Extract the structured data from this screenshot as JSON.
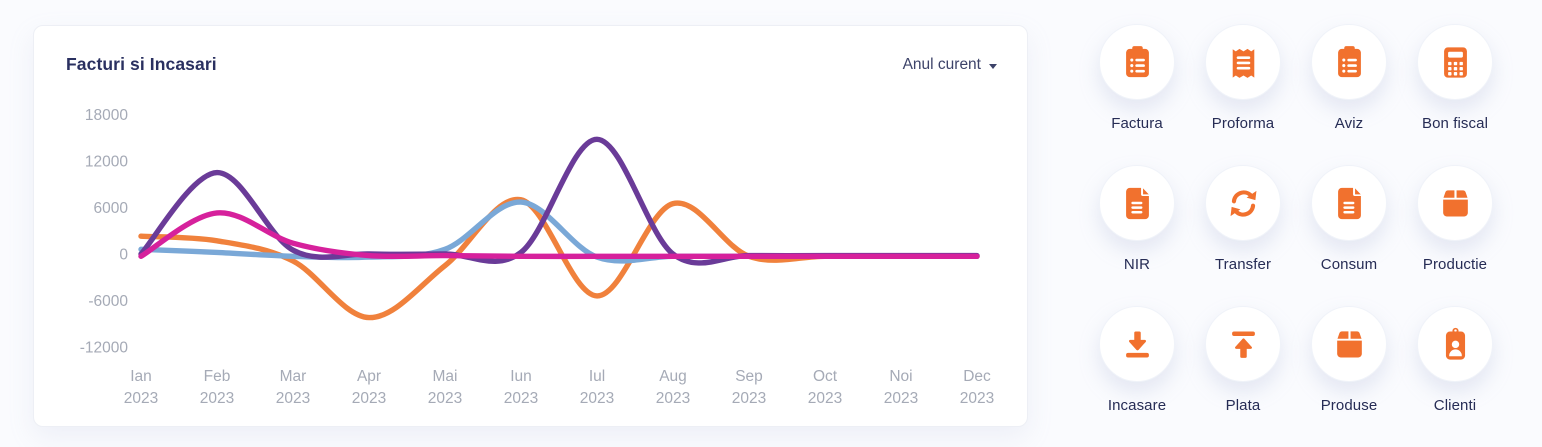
{
  "card": {
    "title": "Facturi si Incasari",
    "period_selector": "Anul curent"
  },
  "chart_data": {
    "type": "line",
    "title": "Facturi si Incasari",
    "categories": [
      "Ian",
      "Feb",
      "Mar",
      "Apr",
      "Mai",
      "Iun",
      "Iul",
      "Aug",
      "Sep",
      "Oct",
      "Noi",
      "Dec"
    ],
    "category_year": "2023",
    "y_ticks": [
      18000,
      12000,
      6000,
      0,
      -6000,
      -12000
    ],
    "ylim": [
      -14000,
      19000
    ],
    "grid": false,
    "legend": false,
    "series": [
      {
        "id": "orange-line",
        "color": "#f0813c",
        "values": [
          2300,
          1700,
          -900,
          -8200,
          -1500,
          7000,
          -5400,
          6500,
          -300,
          -300,
          -300,
          -300
        ]
      },
      {
        "id": "blue-line",
        "color": "#7aa8d7",
        "values": [
          600,
          200,
          -300,
          -400,
          600,
          6700,
          -400,
          -300,
          -300,
          -300,
          -300,
          -300
        ]
      },
      {
        "id": "purple-line",
        "color": "#6a3b98",
        "values": [
          0,
          10500,
          500,
          0,
          0,
          200,
          14800,
          0,
          -200,
          -200,
          -200,
          -200
        ]
      },
      {
        "id": "pink-line",
        "color": "#d6219c",
        "values": [
          -300,
          5300,
          1400,
          -200,
          -200,
          -300,
          -300,
          -300,
          -300,
          -300,
          -300,
          -300
        ]
      }
    ]
  },
  "shortcuts": [
    {
      "label": "Factura",
      "icon": "clipboard-list-icon"
    },
    {
      "label": "Proforma",
      "icon": "receipt-icon"
    },
    {
      "label": "Aviz",
      "icon": "clipboard-list-icon"
    },
    {
      "label": "Bon fiscal",
      "icon": "calculator-icon"
    },
    {
      "label": "NIR",
      "icon": "file-lines-icon"
    },
    {
      "label": "Transfer",
      "icon": "sync-arrows-icon"
    },
    {
      "label": "Consum",
      "icon": "file-lines-icon"
    },
    {
      "label": "Productie",
      "icon": "box-icon"
    },
    {
      "label": "Incasare",
      "icon": "download-icon"
    },
    {
      "label": "Plata",
      "icon": "upload-icon"
    },
    {
      "label": "Produse",
      "icon": "box-icon"
    },
    {
      "label": "Clienti",
      "icon": "id-badge-icon"
    }
  ],
  "colors": {
    "accent_orange": "#f1712e",
    "navy_text": "#262c55",
    "axis_gray": "#a5aab6"
  }
}
